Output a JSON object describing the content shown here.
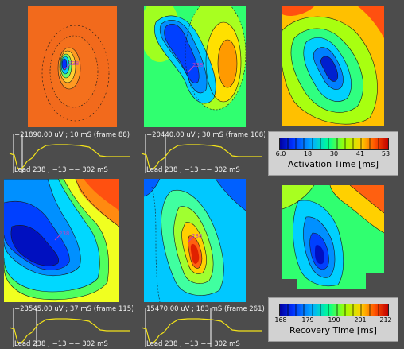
{
  "panels": {
    "frame88": {
      "caption": "−21890.00 uV ; 10 mS (frame 88)",
      "lead": "Lead 238 ; −13 −− 302 mS"
    },
    "frame108": {
      "caption": "−20440.00 uV ; 30 mS (frame 108)",
      "lead": "Lead 238 ; −13 −− 302 mS"
    },
    "frame115": {
      "caption": "−23545.00 uV ; 37 mS (frame 115)",
      "lead": "Lead 238 ; −13 −− 302 mS"
    },
    "frame261": {
      "caption": "15470.00 uV ; 183 mS (frame 261)",
      "lead": "Lead 238 ; −13 −− 302 mS"
    }
  },
  "marker_label": "238",
  "activation_legend": {
    "title": "Activation Time [ms]",
    "ticks": [
      "6.0",
      "18",
      "30",
      "41",
      "53"
    ]
  },
  "recovery_legend": {
    "title": "Recovery Time [ms]",
    "ticks": [
      "168",
      "179",
      "190",
      "201",
      "212"
    ]
  },
  "colors": {
    "background": "#4c4c4c",
    "trace": "#f2e21a",
    "marker": "#c040c0",
    "cursor": "#ffffff"
  }
}
